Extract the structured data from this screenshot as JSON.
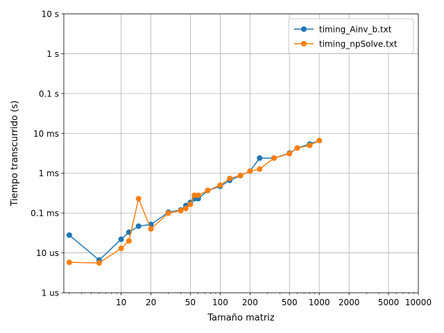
{
  "chart_data": {
    "type": "line",
    "xlabel": "Tamaño matriz",
    "ylabel": "Tiempo transcurrido (s)",
    "xscale": "log",
    "yscale": "log",
    "xlim": [
      2.64,
      10000
    ],
    "ylim": [
      1e-06,
      10
    ],
    "grid": true,
    "legend_position": "top-right",
    "x_ticks": [
      {
        "value": 10,
        "label": "10"
      },
      {
        "value": 20,
        "label": "20"
      },
      {
        "value": 50,
        "label": "50"
      },
      {
        "value": 100,
        "label": "100"
      },
      {
        "value": 200,
        "label": "200"
      },
      {
        "value": 500,
        "label": "500"
      },
      {
        "value": 1000,
        "label": "1000"
      },
      {
        "value": 2000,
        "label": "2000"
      },
      {
        "value": 5000,
        "label": "5000"
      },
      {
        "value": 10000,
        "label": "10000"
      }
    ],
    "x_minor_ticks": [
      3,
      4,
      5,
      6,
      7,
      8,
      9,
      30,
      40,
      60,
      70,
      80,
      90,
      300,
      400,
      600,
      700,
      800,
      900,
      3000,
      4000,
      6000,
      7000,
      8000,
      9000
    ],
    "y_ticks": [
      {
        "value": 1e-06,
        "label": "1 us"
      },
      {
        "value": 1e-05,
        "label": "10 us"
      },
      {
        "value": 0.0001,
        "label": "0.1 ms"
      },
      {
        "value": 0.001,
        "label": "1 ms"
      },
      {
        "value": 0.01,
        "label": "10 ms"
      },
      {
        "value": 0.1,
        "label": "0.1 s"
      },
      {
        "value": 1,
        "label": "1 s"
      },
      {
        "value": 10,
        "label": "10 s"
      }
    ],
    "series": [
      {
        "name": "timing_Ainv_b.txt",
        "color": "#1f77b4",
        "x": [
          3,
          6,
          10,
          12,
          15,
          20,
          30,
          40,
          45,
          50,
          55,
          60,
          75,
          100,
          125,
          160,
          200,
          250,
          350,
          500,
          600,
          800,
          1000
        ],
        "y": [
          2.8e-05,
          6.6e-06,
          2.2e-05,
          3.3e-05,
          4.7e-05,
          5.2e-05,
          0.000105,
          0.00012,
          0.000155,
          0.000185,
          0.00023,
          0.00023,
          0.00037,
          0.00047,
          0.00066,
          0.00087,
          0.00113,
          0.0024,
          0.0024,
          0.0032,
          0.0043,
          0.0054,
          0.0066
        ]
      },
      {
        "name": "timing_npSolve.txt",
        "color": "#ff7f0e",
        "x": [
          3,
          6,
          10,
          12,
          15,
          20,
          30,
          40,
          45,
          50,
          55,
          60,
          75,
          100,
          125,
          160,
          200,
          250,
          350,
          500,
          600,
          800,
          1000
        ],
        "y": [
          5.8e-06,
          5.6e-06,
          1.3e-05,
          2e-05,
          0.00023,
          4e-05,
          0.0001,
          0.000115,
          0.00013,
          0.000165,
          0.00028,
          0.00028,
          0.00037,
          0.0005,
          0.00074,
          0.00088,
          0.00113,
          0.00127,
          0.0024,
          0.0031,
          0.0043,
          0.005,
          0.0066
        ]
      }
    ]
  }
}
